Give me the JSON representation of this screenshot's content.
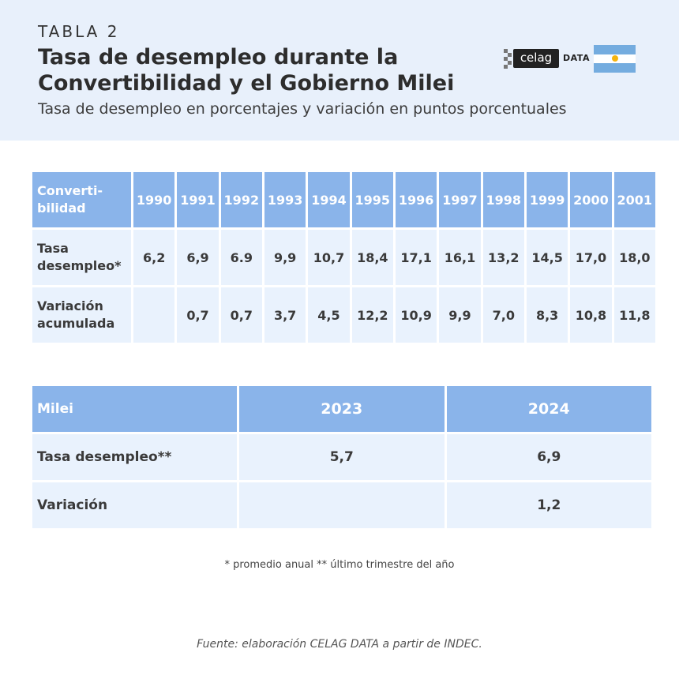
{
  "header": {
    "tag": "TABLA 2",
    "title": "Tasa de desempleo durante la Convertibilidad y el Gobierno Milei",
    "subtitle": "Tasa de desempleo en porcentajes y variación en puntos porcentuales",
    "logo_box": "celag",
    "logo_text": "DATA",
    "flag_icon": "argentina-flag-icon",
    "colors": {
      "header_bg": "#e8f0fb",
      "table_head": "#8ab4ea",
      "table_cell": "#e9f2fd"
    }
  },
  "chart_data": [
    {
      "type": "table",
      "header_label": "Converti-bilidad",
      "columns": [
        "1990",
        "1991",
        "1992",
        "1993",
        "1994",
        "1995",
        "1996",
        "1997",
        "1998",
        "1999",
        "2000",
        "2001"
      ],
      "rows": [
        {
          "label": "Tasa desempleo*",
          "values": [
            "6,2",
            "6,9",
            "6.9",
            "9,9",
            "10,7",
            "18,4",
            "17,1",
            "16,1",
            "13,2",
            "14,5",
            "17,0",
            "18,0"
          ]
        },
        {
          "label": "Variación acumulada",
          "values": [
            "",
            "0,7",
            "0,7",
            "3,7",
            "4,5",
            "12,2",
            "10,9",
            "9,9",
            "7,0",
            "8,3",
            "10,8",
            "11,8"
          ]
        }
      ]
    },
    {
      "type": "table",
      "header_label": "Milei",
      "columns": [
        "2023",
        "2024"
      ],
      "rows": [
        {
          "label": "Tasa desempleo**",
          "values": [
            "5,7",
            "6,9"
          ]
        },
        {
          "label": "Variación",
          "values": [
            "",
            "1,2"
          ]
        }
      ]
    }
  ],
  "note": "* promedio anual ** último trimestre del año",
  "source": "Fuente: elaboración CELAG DATA a partir de INDEC."
}
